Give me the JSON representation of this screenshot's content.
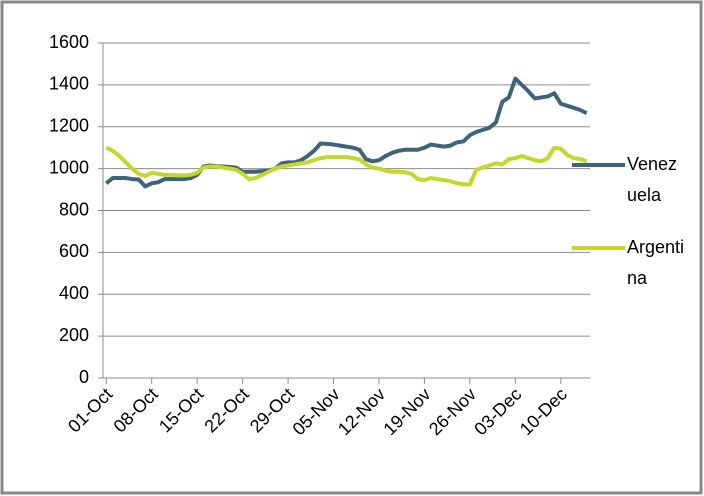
{
  "chart_data": {
    "type": "line",
    "categories": [
      "01-Oct",
      null,
      null,
      null,
      null,
      null,
      null,
      "08-Oct",
      null,
      null,
      null,
      null,
      null,
      null,
      "15-Oct",
      null,
      null,
      null,
      null,
      null,
      null,
      "22-Oct",
      null,
      null,
      null,
      null,
      null,
      null,
      "29-Oct",
      null,
      null,
      null,
      null,
      null,
      null,
      "05-Nov",
      null,
      null,
      null,
      null,
      null,
      null,
      "12-Nov",
      null,
      null,
      null,
      null,
      null,
      null,
      "19-Nov",
      null,
      null,
      null,
      null,
      null,
      null,
      "26-Nov",
      null,
      null,
      null,
      null,
      null,
      null,
      "03-Dec",
      null,
      null,
      null,
      null,
      null,
      null,
      "10-Dec",
      null,
      null,
      null,
      null
    ],
    "series": [
      {
        "name": "Venezuela",
        "color": "#3f6479",
        "values": [
          930,
          955,
          955,
          955,
          950,
          948,
          915,
          930,
          935,
          950,
          950,
          950,
          950,
          955,
          970,
          1010,
          1015,
          1012,
          1010,
          1008,
          1005,
          985,
          985,
          985,
          988,
          990,
          1000,
          1025,
          1030,
          1030,
          1040,
          1060,
          1085,
          1120,
          1118,
          1115,
          1110,
          1105,
          1100,
          1090,
          1045,
          1035,
          1040,
          1060,
          1075,
          1085,
          1090,
          1090,
          1090,
          1100,
          1115,
          1110,
          1105,
          1110,
          1125,
          1130,
          1160,
          1175,
          1185,
          1195,
          1220,
          1320,
          1340,
          1430,
          1400,
          1370,
          1335,
          1340,
          1345,
          1360,
          1310,
          1300,
          1290,
          1280,
          1265
        ]
      },
      {
        "name": "Argentina",
        "color": "#c5d72a",
        "values": [
          1100,
          1085,
          1060,
          1030,
          1000,
          975,
          965,
          980,
          975,
          970,
          970,
          968,
          968,
          970,
          980,
          1005,
          1010,
          1010,
          1005,
          1000,
          995,
          975,
          950,
          955,
          970,
          985,
          1000,
          1010,
          1015,
          1020,
          1025,
          1030,
          1040,
          1050,
          1055,
          1055,
          1055,
          1055,
          1050,
          1045,
          1020,
          1005,
          1000,
          990,
          985,
          985,
          983,
          975,
          950,
          945,
          955,
          950,
          945,
          940,
          930,
          925,
          925,
          995,
          1005,
          1015,
          1025,
          1020,
          1045,
          1050,
          1060,
          1050,
          1040,
          1035,
          1050,
          1100,
          1095,
          1065,
          1050,
          1045,
          1035
        ]
      }
    ],
    "ylim": [
      0,
      1600
    ],
    "yticks": [
      0,
      200,
      400,
      600,
      800,
      1000,
      1200,
      1400,
      1600
    ],
    "grid": true,
    "legend": "right"
  }
}
